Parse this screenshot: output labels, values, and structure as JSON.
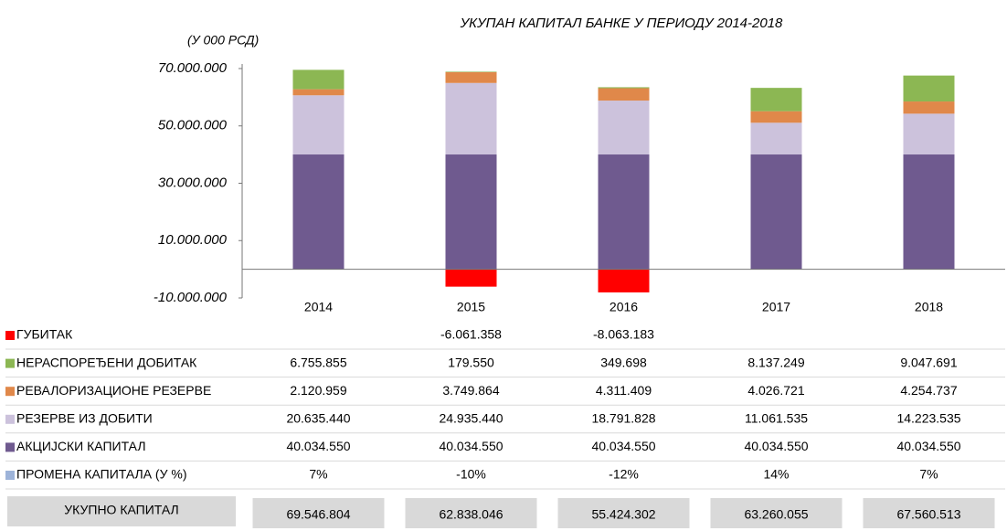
{
  "chart_data": {
    "type": "bar",
    "stacked": true,
    "title": "УКУПАН КАПИТАЛ БАНКЕ У ПЕРИОДУ 2014-2018",
    "unit_label": "(У 000 РСД)",
    "categories": [
      "2014",
      "2015",
      "2016",
      "2017",
      "2018"
    ],
    "ylim": [
      -10000000,
      70000000
    ],
    "yticks": [
      {
        "value": 70000000,
        "label": "70.000.000"
      },
      {
        "value": 50000000,
        "label": "50.000.000"
      },
      {
        "value": 30000000,
        "label": "30.000.000"
      },
      {
        "value": 10000000,
        "label": "10.000.000"
      },
      {
        "value": -10000000,
        "label": "-10.000.000"
      }
    ],
    "series": [
      {
        "name": "ГУБИТАК",
        "color": "#ff0000",
        "values": [
          null,
          -6061358,
          -8063183,
          null,
          null
        ],
        "value_labels": [
          null,
          "-6.061.358",
          "-8.063.183",
          null,
          null
        ]
      },
      {
        "name": "НЕРАСПОРЕЂЕНИ ДОБИТАК",
        "color": "#8cb753",
        "values": [
          6755855,
          179550,
          349698,
          8137249,
          9047691
        ],
        "value_labels": [
          "6.755.855",
          "179.550",
          "349.698",
          "8.137.249",
          "9.047.691"
        ]
      },
      {
        "name": "РЕВАЛОРИЗАЦИОНЕ РЕЗЕРВЕ",
        "color": "#e0884a",
        "values": [
          2120959,
          3749864,
          4311409,
          4026721,
          4254737
        ],
        "value_labels": [
          "2.120.959",
          "3.749.864",
          "4.311.409",
          "4.026.721",
          "4.254.737"
        ]
      },
      {
        "name": "РЕЗЕРВЕ ИЗ ДОБИТИ",
        "color": "#ccc2dc",
        "values": [
          20635440,
          24935440,
          18791828,
          11061535,
          14223535
        ],
        "value_labels": [
          "20.635.440",
          "24.935.440",
          "18.791.828",
          "11.061.535",
          "14.223.535"
        ]
      },
      {
        "name": "АКЦИЈСКИ КАПИТАЛ",
        "color": "#6f5a8f",
        "values": [
          40034550,
          40034550,
          40034550,
          40034550,
          40034550
        ],
        "value_labels": [
          "40.034.550",
          "40.034.550",
          "40.034.550",
          "40.034.550",
          "40.034.550"
        ]
      }
    ],
    "change": {
      "name": "ПРОМЕНА КАПИТАЛА (У %)",
      "color": "#9db3d9",
      "values": [
        7,
        -10,
        -12,
        14,
        7
      ],
      "value_labels": [
        "7%",
        "-10%",
        "-12%",
        "14%",
        "7%"
      ]
    },
    "totals": {
      "name": "УКУПНО КАПИТАЛ",
      "values": [
        69546804,
        62838046,
        55424302,
        63260055,
        67560513
      ],
      "value_labels": [
        "69.546.804",
        "62.838.046",
        "55.424.302",
        "63.260.055",
        "67.560.513"
      ]
    }
  }
}
